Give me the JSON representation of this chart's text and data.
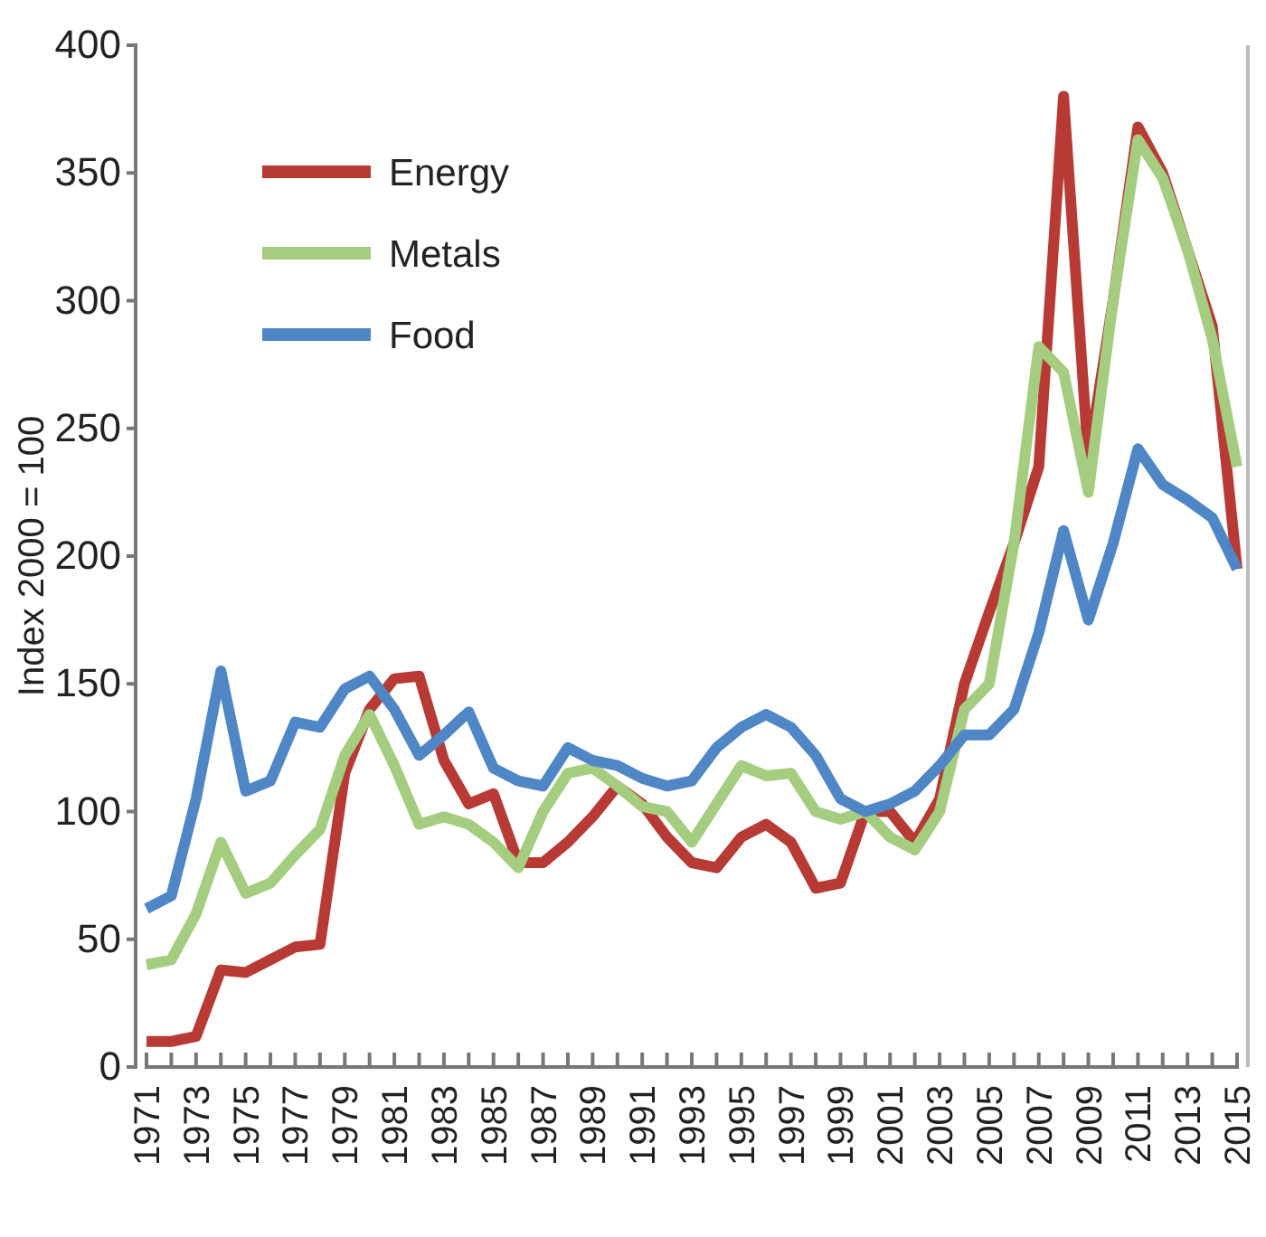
{
  "chart_data": {
    "type": "line",
    "ylabel": "Index 2000 = 100",
    "categories": [
      "1971",
      null,
      "1973",
      null,
      "1975",
      null,
      "1977",
      null,
      "1979",
      null,
      "1981",
      null,
      "1983",
      null,
      "1985",
      null,
      "1987",
      null,
      "1989",
      null,
      "1991",
      null,
      "1993",
      null,
      "1995",
      null,
      "1997",
      null,
      "1999",
      null,
      "2001",
      null,
      "2003",
      null,
      "2005",
      null,
      "2007",
      null,
      "2009",
      null,
      "2011",
      null,
      "2013",
      null,
      "2015"
    ],
    "series": [
      {
        "name": "Energy",
        "color": "#b83a34",
        "values": [
          10,
          10,
          12,
          38,
          37,
          42,
          47,
          48,
          115,
          140,
          152,
          153,
          120,
          103,
          107,
          80,
          80,
          88,
          98,
          110,
          103,
          90,
          80,
          78,
          90,
          95,
          88,
          70,
          72,
          100,
          100,
          88,
          105,
          150,
          178,
          205,
          235,
          380,
          238,
          300,
          368,
          350,
          320,
          290,
          195
        ]
      },
      {
        "name": "Metals",
        "color": "#a5cd7f",
        "values": [
          40,
          42,
          60,
          88,
          68,
          72,
          83,
          93,
          122,
          138,
          118,
          95,
          98,
          95,
          88,
          78,
          100,
          115,
          117,
          110,
          102,
          100,
          88,
          103,
          118,
          114,
          115,
          100,
          97,
          100,
          90,
          85,
          100,
          140,
          150,
          205,
          282,
          272,
          225,
          300,
          363,
          348,
          320,
          285,
          235
        ]
      },
      {
        "name": "Food",
        "color": "#4f86c6",
        "values": [
          62,
          67,
          105,
          155,
          108,
          112,
          135,
          133,
          148,
          153,
          140,
          122,
          130,
          139,
          117,
          112,
          110,
          125,
          120,
          118,
          113,
          110,
          112,
          125,
          133,
          138,
          133,
          122,
          105,
          100,
          103,
          108,
          118,
          130,
          130,
          140,
          170,
          210,
          175,
          205,
          242,
          228,
          222,
          215,
          195
        ]
      }
    ],
    "ylim": [
      0,
      400
    ],
    "yticks": [
      0,
      50,
      100,
      150,
      200,
      250,
      300,
      350,
      400
    ],
    "legend": "top left",
    "marker": "none",
    "line_style": "solid"
  }
}
